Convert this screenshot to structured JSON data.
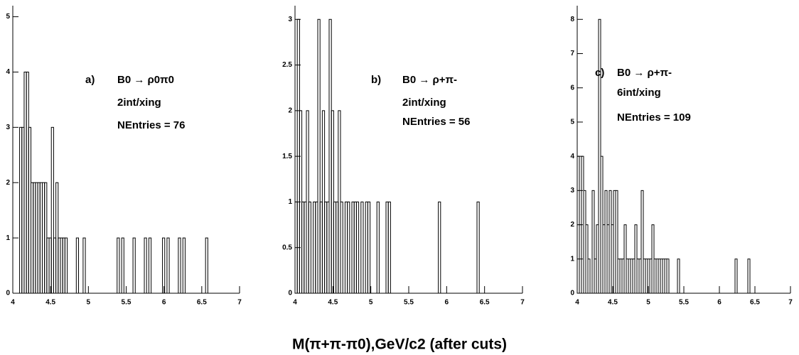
{
  "chart_data": [
    {
      "type": "histogram",
      "annotation": {
        "label": "a)",
        "lines": [
          "B0 → ρ0π0",
          "2int/xing",
          "NEntries = 76"
        ]
      },
      "bins": [
        4,
        4.03,
        4.06,
        4.09,
        4.12,
        4.15,
        4.18,
        4.21,
        4.24,
        4.27,
        4.3,
        4.33,
        4.36,
        4.39,
        4.42,
        4.45,
        4.48,
        4.51,
        4.54,
        4.57,
        4.6,
        4.63,
        4.66,
        4.69,
        4.72,
        4.75,
        4.78,
        4.81,
        4.84,
        4.87,
        4.9,
        4.93,
        4.96,
        4.99,
        5.02,
        5.05,
        5.08,
        5.11,
        5.14,
        5.17,
        5.2,
        5.23,
        5.26,
        5.29,
        5.32,
        5.35,
        5.38,
        5.41,
        5.44,
        5.47,
        5.5,
        5.53,
        5.56,
        5.59,
        5.62,
        5.65,
        5.68,
        5.71,
        5.74,
        5.77,
        5.8,
        5.83,
        5.86,
        5.89,
        5.92,
        5.95,
        5.98,
        6.01,
        6.04,
        6.07,
        6.1,
        6.13,
        6.16,
        6.19,
        6.22,
        6.25,
        6.28,
        6.31,
        6.34,
        6.37,
        6.4,
        6.43,
        6.46,
        6.49,
        6.52,
        6.55,
        6.58
      ],
      "values": [
        0,
        0,
        0,
        3,
        3,
        4,
        4,
        3,
        2,
        2,
        2,
        2,
        2,
        2,
        2,
        1,
        1,
        3,
        1,
        2,
        1,
        1,
        1,
        1,
        0,
        0,
        0,
        0,
        1,
        0,
        0,
        1,
        0,
        0,
        0,
        0,
        0,
        0,
        0,
        0,
        0,
        0,
        0,
        0,
        0,
        0,
        1,
        0,
        1,
        0,
        0,
        0,
        0,
        1,
        0,
        0,
        0,
        0,
        1,
        0,
        1,
        0,
        0,
        0,
        0,
        0,
        1,
        0,
        1,
        0,
        0,
        0,
        0,
        1,
        0,
        1,
        0,
        0,
        0,
        0,
        0,
        0,
        0,
        0,
        0,
        1
      ],
      "color": "#000000",
      "xlim": [
        4,
        7
      ],
      "xticks": [
        4,
        4.5,
        5,
        5.5,
        6,
        6.5,
        7
      ],
      "ylim": [
        0,
        5.2
      ],
      "yticks": [
        0,
        1,
        2,
        3,
        4,
        5
      ]
    },
    {
      "type": "histogram",
      "annotation": {
        "label": "b)",
        "lines": [
          "B0 → ρ+π-",
          "2int/xing",
          "NEntries = 56"
        ]
      },
      "bins": [
        4,
        4.03,
        4.06,
        4.09,
        4.12,
        4.15,
        4.18,
        4.21,
        4.24,
        4.27,
        4.3,
        4.33,
        4.36,
        4.39,
        4.42,
        4.45,
        4.48,
        4.51,
        4.54,
        4.57,
        4.6,
        4.63,
        4.66,
        4.69,
        4.72,
        4.75,
        4.78,
        4.81,
        4.84,
        4.87,
        4.9,
        4.93,
        4.96,
        4.99,
        5.02,
        5.05,
        5.08,
        5.11,
        5.14,
        5.17,
        5.2,
        5.23,
        5.26,
        5.29,
        5.32,
        5.35,
        5.38,
        5.41,
        5.44,
        5.47,
        5.5,
        5.53,
        5.56,
        5.59,
        5.62,
        5.65,
        5.68,
        5.71,
        5.74,
        5.77,
        5.8,
        5.83,
        5.86,
        5.89,
        5.92,
        5.95,
        5.98,
        6.01,
        6.04,
        6.07,
        6.1,
        6.13,
        6.16,
        6.19,
        6.22,
        6.25,
        6.28,
        6.31,
        6.34,
        6.37,
        6.4,
        6.43
      ],
      "values": [
        1,
        3,
        2,
        1,
        1,
        2,
        1,
        0,
        1,
        1,
        3,
        1,
        2,
        1,
        1,
        3,
        2,
        1,
        1,
        2,
        1,
        0,
        1,
        1,
        0,
        1,
        1,
        1,
        0,
        1,
        0,
        1,
        1,
        0,
        0,
        0,
        1,
        0,
        0,
        0,
        1,
        1,
        0,
        0,
        0,
        0,
        0,
        0,
        0,
        0,
        0,
        0,
        0,
        0,
        0,
        0,
        0,
        0,
        0,
        0,
        0,
        0,
        0,
        1,
        0,
        0,
        0,
        0,
        0,
        0,
        0,
        0,
        0,
        0,
        0,
        0,
        0,
        0,
        0,
        0,
        1
      ],
      "color": "#000000",
      "xlim": [
        4,
        7
      ],
      "xticks": [
        4,
        4.5,
        5,
        5.5,
        6,
        6.5,
        7
      ],
      "ylim": [
        0,
        3.15
      ],
      "yticks": [
        0,
        0.5,
        1,
        1.5,
        2,
        2.5,
        3
      ]
    },
    {
      "type": "histogram",
      "annotation": {
        "label": "c)",
        "lines": [
          "B0 → ρ+π-",
          "6int/xing",
          "NEntries = 109"
        ]
      },
      "bins": [
        4,
        4.03,
        4.06,
        4.09,
        4.12,
        4.15,
        4.18,
        4.21,
        4.24,
        4.27,
        4.3,
        4.33,
        4.36,
        4.39,
        4.42,
        4.45,
        4.48,
        4.51,
        4.54,
        4.57,
        4.6,
        4.63,
        4.66,
        4.69,
        4.72,
        4.75,
        4.78,
        4.81,
        4.84,
        4.87,
        4.9,
        4.93,
        4.96,
        4.99,
        5.02,
        5.05,
        5.08,
        5.11,
        5.14,
        5.17,
        5.2,
        5.23,
        5.26,
        5.29,
        5.32,
        5.35,
        5.38,
        5.41,
        5.44,
        5.47,
        5.5,
        5.53,
        5.56,
        5.59,
        5.62,
        5.65,
        5.68,
        5.71,
        5.74,
        5.77,
        5.8,
        5.83,
        5.86,
        5.89,
        5.92,
        5.95,
        5.98,
        6.01,
        6.04,
        6.07,
        6.1,
        6.13,
        6.16,
        6.19,
        6.22,
        6.25,
        6.28,
        6.31,
        6.34,
        6.37,
        6.4,
        6.43
      ],
      "values": [
        4,
        2,
        4,
        3,
        2,
        1,
        0,
        3,
        1,
        2,
        8,
        4,
        2,
        3,
        2,
        3,
        2,
        3,
        3,
        1,
        1,
        1,
        2,
        1,
        1,
        1,
        1,
        2,
        1,
        1,
        3,
        1,
        1,
        1,
        1,
        2,
        1,
        1,
        1,
        1,
        1,
        1,
        1,
        0,
        0,
        0,
        0,
        1,
        0,
        0,
        0,
        0,
        0,
        0,
        0,
        0,
        0,
        0,
        0,
        0,
        0,
        0,
        0,
        0,
        0,
        0,
        0,
        0,
        0,
        0,
        0,
        0,
        0,
        0,
        1,
        0,
        0,
        0,
        0,
        0,
        1
      ],
      "color": "#000000",
      "xlim": [
        4,
        7
      ],
      "xticks": [
        4,
        4.5,
        5,
        5.5,
        6,
        6.5,
        7
      ],
      "ylim": [
        0,
        8.4
      ],
      "yticks": [
        0,
        1,
        2,
        3,
        4,
        5,
        6,
        7,
        8
      ]
    }
  ],
  "xlabel": "M(π+π-π0),GeV/c2 (after cuts)"
}
